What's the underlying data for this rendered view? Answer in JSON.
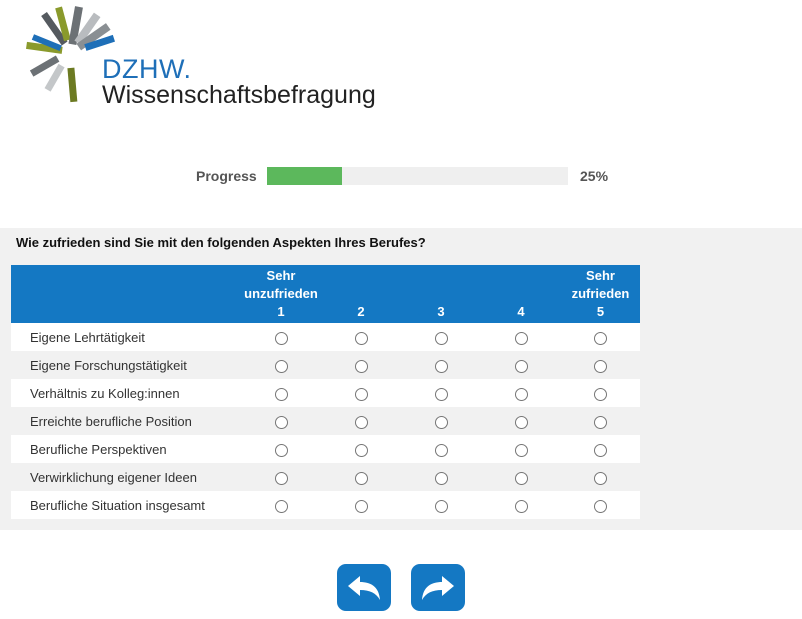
{
  "brand": {
    "name": "DZHW.",
    "subtitle": "Wissenschaftsbefragung"
  },
  "progress": {
    "label": "Progress",
    "value": 25,
    "display": "25%",
    "fill_color": "#5cb85c"
  },
  "question": {
    "text": "Wie zufrieden sind Sie mit den folgenden Aspekten Ihres Berufes?",
    "columns": [
      {
        "top": "Sehr",
        "mid": "unzufrieden",
        "num": "1"
      },
      {
        "top": "",
        "mid": "",
        "num": "2"
      },
      {
        "top": "",
        "mid": "",
        "num": "3"
      },
      {
        "top": "",
        "mid": "",
        "num": "4"
      },
      {
        "top": "Sehr",
        "mid": "zufrieden",
        "num": "5"
      }
    ],
    "rows": [
      "Eigene Lehrtätigkeit",
      "Eigene Forschungstätigkeit",
      "Verhältnis zu Kolleg:innen",
      "Erreichte berufliche Position",
      "Berufliche Perspektiven",
      "Verwirklichung eigener Ideen",
      "Berufliche Situation insgesamt"
    ],
    "header_color": "#1478c3"
  },
  "navigation": {
    "back_icon": "undo-arrow-icon",
    "next_icon": "redo-arrow-icon"
  }
}
